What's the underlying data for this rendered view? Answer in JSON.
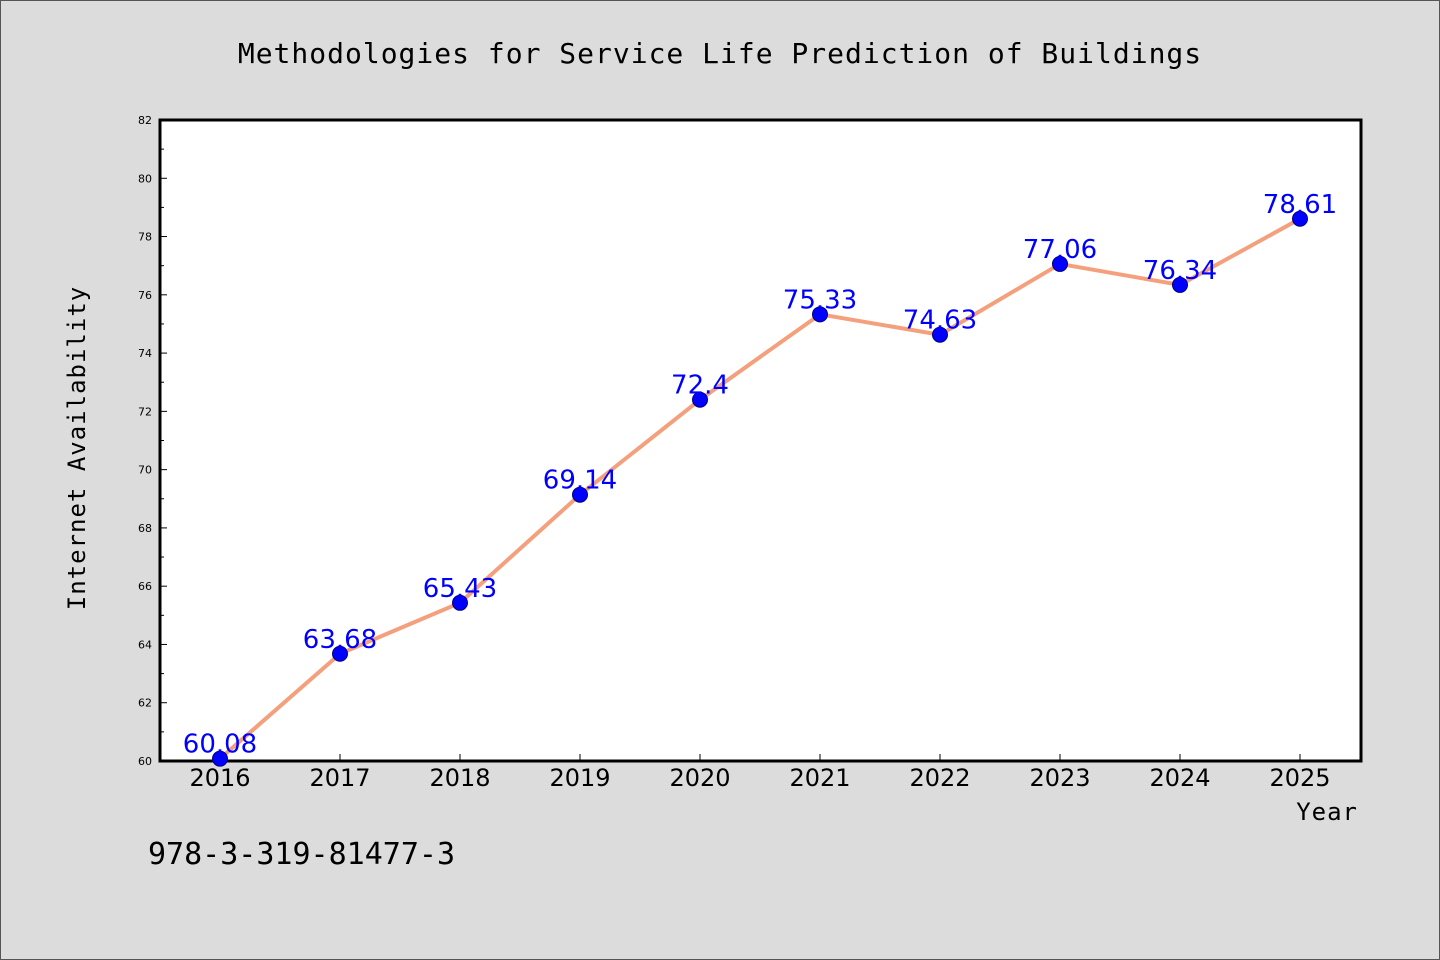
{
  "chart_data": {
    "type": "line",
    "title": "Methodologies for Service Life Prediction of Buildings",
    "xlabel": "Year",
    "ylabel": "Internet Availability",
    "categories": [
      "2016",
      "2017",
      "2018",
      "2019",
      "2020",
      "2021",
      "2022",
      "2023",
      "2024",
      "2025"
    ],
    "series": [
      {
        "values": [
          60.08,
          63.68,
          65.43,
          69.14,
          72.4,
          75.33,
          74.63,
          77.06,
          76.34,
          78.61
        ]
      }
    ],
    "data_labels": [
      "60.08",
      "63.68",
      "65.43",
      "69.14",
      "72.4",
      "75.33",
      "74.63",
      "77.06",
      "76.34",
      "78.61"
    ],
    "ylim": [
      60,
      82
    ],
    "yticks": [
      60,
      62,
      64,
      66,
      68,
      70,
      72,
      74,
      76,
      78,
      80,
      82
    ],
    "grid": false,
    "legend": "none",
    "colors": {
      "line": "#f4a07c",
      "marker": "#0000ff",
      "marker_edge": "#000080",
      "data_label": "#0000ff",
      "page_background": "#dcdcdc",
      "plot_background": "#ffffff"
    }
  },
  "footnote": "978-3-319-81477-3"
}
